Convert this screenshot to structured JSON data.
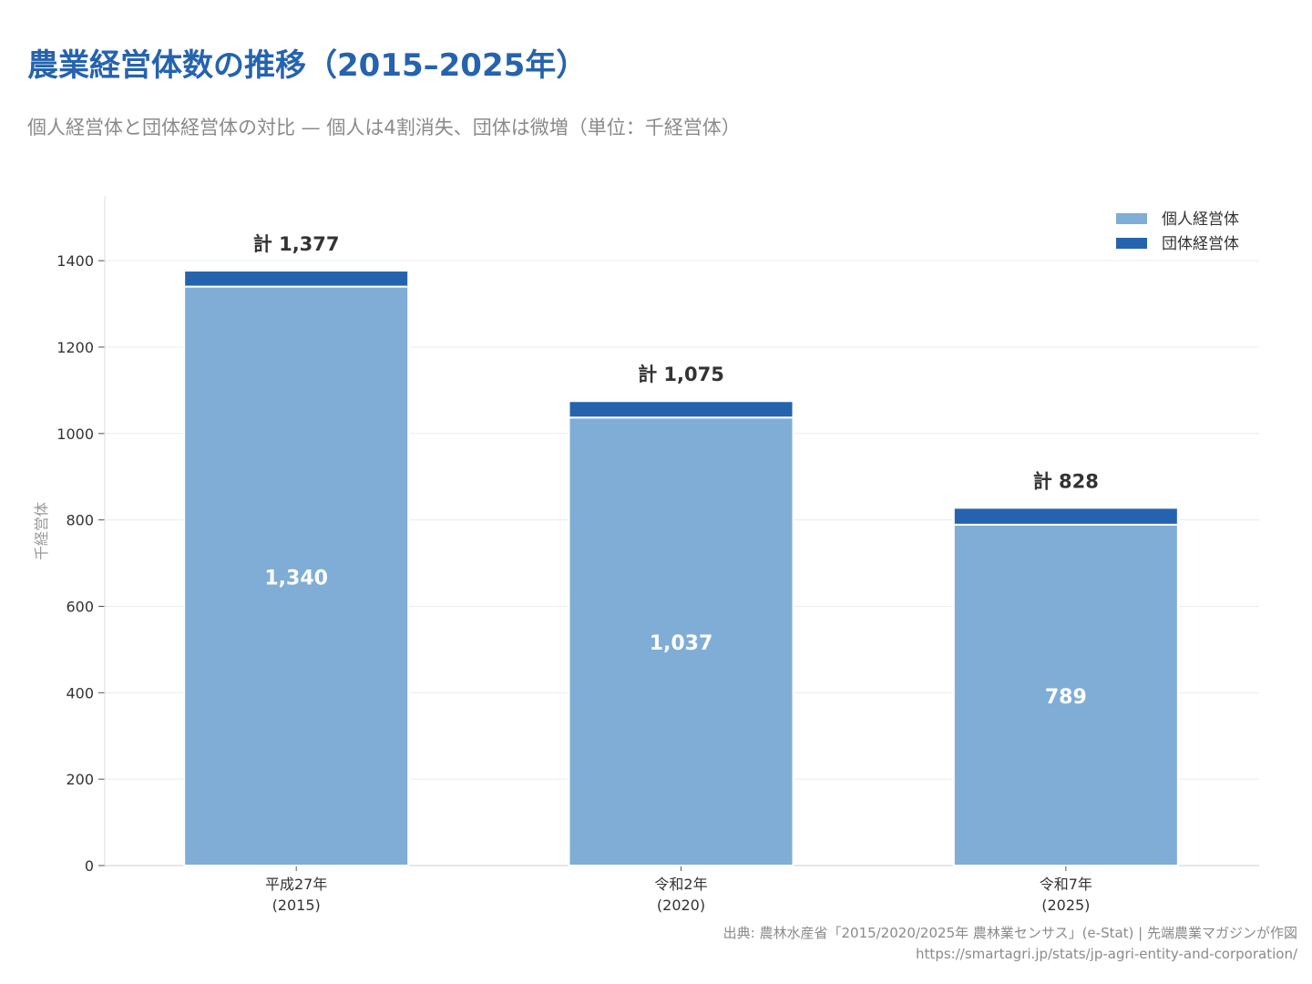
{
  "title": "農業経営体数の推移（2015–2025年）",
  "subtitle": "個人経営体と団体経営体の対比 — 個人は4割消失、団体は微増（単位：千経営体）",
  "source": {
    "line1": "出典: 農林水産省「2015/2020/2025年 農林業センサス」(e-Stat) | 先端農業マガジンが作図",
    "line2": "https://smartagri.jp/stats/jp-agri-entity-and-corporation/"
  },
  "colors": {
    "individual": "#7fadd6",
    "group": "#2563ae",
    "title": "#2563ae",
    "grid": "#ececec",
    "axis_text": "#333333"
  },
  "chart_data": {
    "type": "bar",
    "stacked": true,
    "categories": [
      [
        "平成27年",
        "(2015)"
      ],
      [
        "令和2年",
        "(2020)"
      ],
      [
        "令和7年",
        "(2025)"
      ]
    ],
    "series": [
      {
        "name": "個人経営体",
        "values": [
          1340,
          1037,
          789
        ],
        "color": "#7fadd6"
      },
      {
        "name": "団体経営体",
        "values": [
          37,
          38,
          39
        ],
        "color": "#2563ae"
      }
    ],
    "total_labels": [
      "計 1,377",
      "計 1,075",
      "計 828"
    ],
    "individual_labels": [
      "1,340",
      "1,037",
      "789"
    ],
    "ylabel": "千経営体",
    "ylim": [
      0,
      1550
    ],
    "yticks": [
      0,
      200,
      400,
      600,
      800,
      1000,
      1200,
      1400
    ],
    "grid": true,
    "legend": "top-right"
  }
}
